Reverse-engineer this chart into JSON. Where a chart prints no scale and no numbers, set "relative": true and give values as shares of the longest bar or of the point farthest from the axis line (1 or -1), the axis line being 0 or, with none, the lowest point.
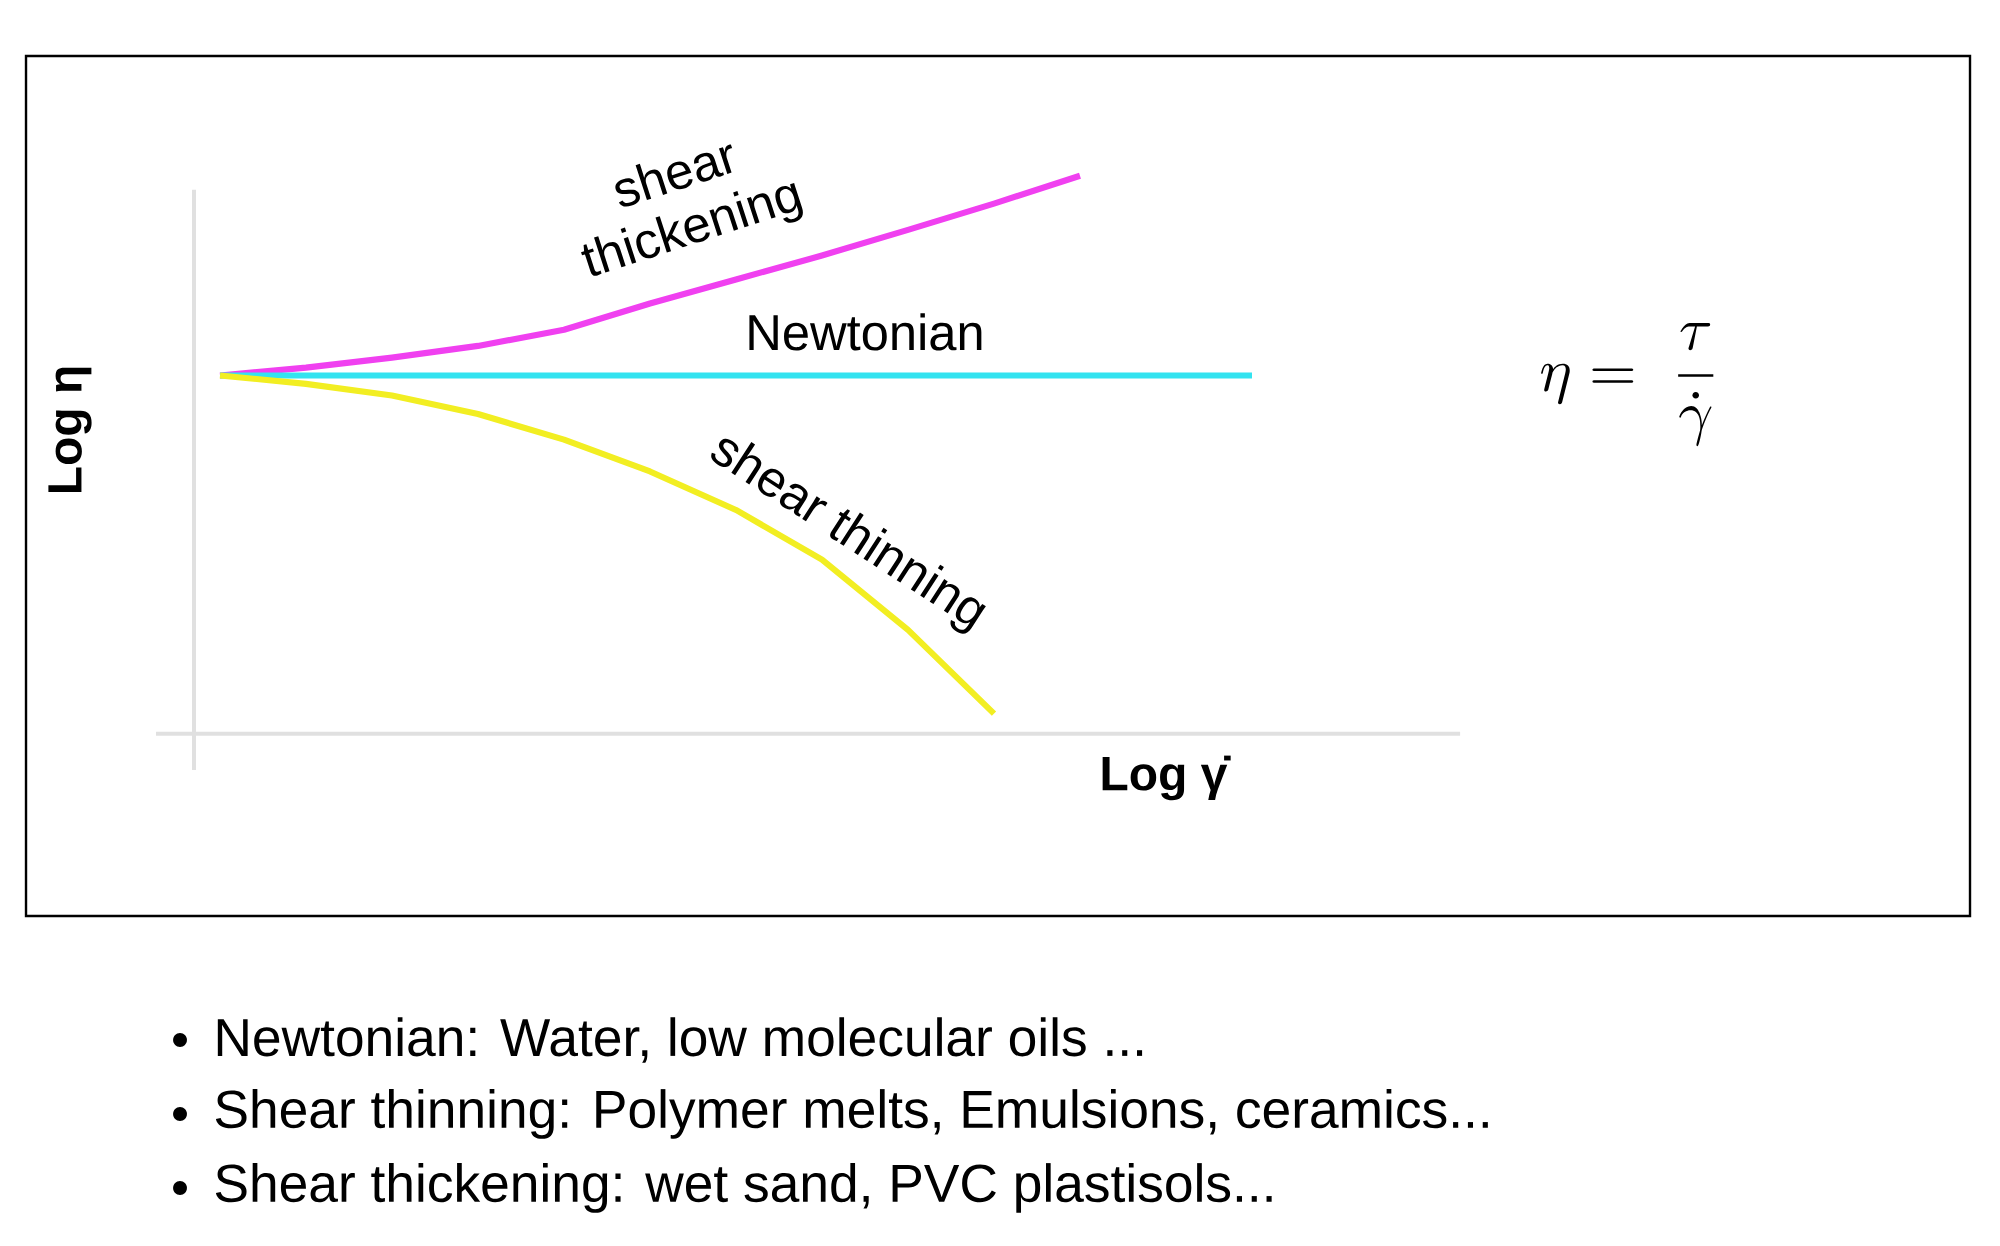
{
  "chart_data": {
    "type": "line",
    "relative": true,
    "xlabel": "Log γ̇",
    "ylabel": "Log η",
    "categories": [
      null,
      null,
      null,
      null,
      null,
      null,
      null,
      null,
      null,
      null,
      null,
      null,
      null
    ],
    "series": [
      {
        "name": "shear thickening",
        "color": "#f040f0",
        "values": [
          0.642,
          0.656,
          0.674,
          0.695,
          0.724,
          0.771,
          0.814,
          0.857,
          0.903,
          0.95,
          1,
          null,
          null
        ]
      },
      {
        "name": "Newtonian",
        "color": "#33e3f0",
        "values": [
          0.642,
          0.642,
          0.642,
          0.642,
          0.642,
          0.642,
          0.642,
          0.642,
          0.642,
          0.642,
          0.642,
          0.642,
          0.642
        ]
      },
      {
        "name": "shear thinning",
        "color": "#f2ee22",
        "values": [
          0.642,
          0.627,
          0.606,
          0.573,
          0.527,
          0.47,
          0.401,
          0.312,
          0.186,
          0.036,
          null,
          null,
          null
        ]
      }
    ],
    "legend": false,
    "marker": "none",
    "line_style": "solid",
    "annotations": [
      "\\eta =\\ \\frac{\\tau}{\\dot{\\gamma}}",
      "Newtonian: Water, low molecular oils ...",
      "Shear thinning: Polymer melts, Emulsions, ceramics...",
      "Shear thickening: wet sand, PVC plastisols..."
    ]
  }
}
